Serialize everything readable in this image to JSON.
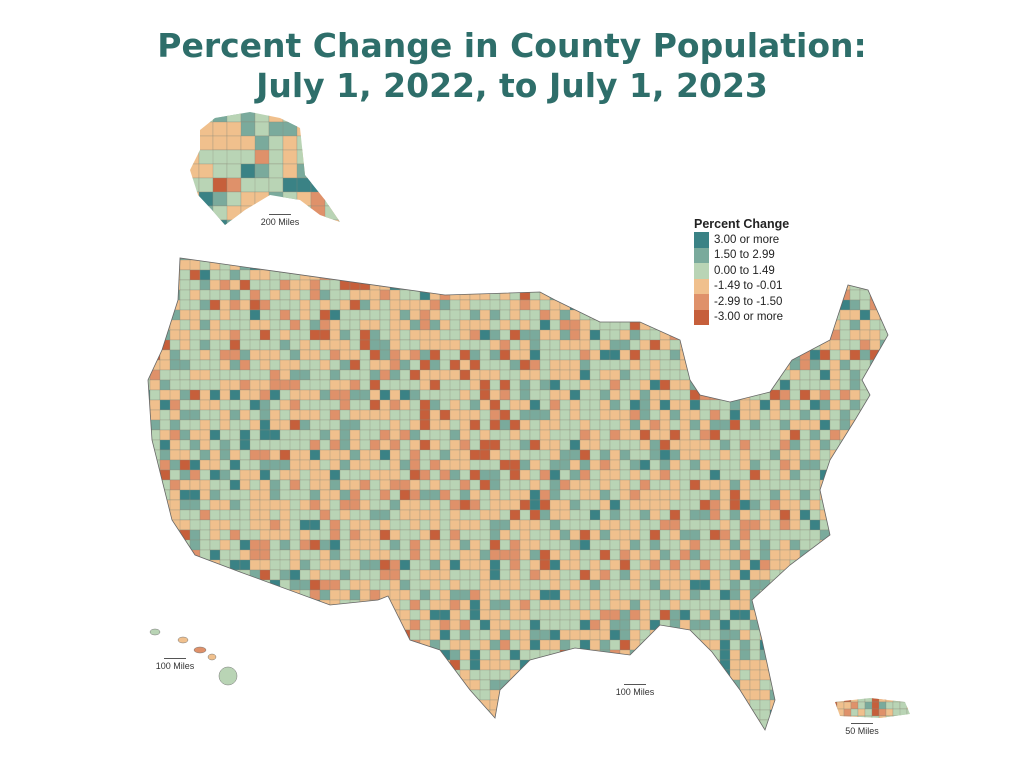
{
  "title": {
    "line1": "Percent Change in County Population:",
    "line2": "July 1, 2022, to July 1, 2023"
  },
  "legend": {
    "title": "Percent Change",
    "items": [
      {
        "label": "3.00 or more",
        "color": "#3a8285"
      },
      {
        "label": "1.50 to 2.99",
        "color": "#7aaa9c"
      },
      {
        "label": "0.00 to 1.49",
        "color": "#b9d4b5"
      },
      {
        "label": "-1.49 to -0.01",
        "color": "#f0c08d"
      },
      {
        "label": "-2.99 to -1.50",
        "color": "#df916a"
      },
      {
        "label": "-3.00 or more",
        "color": "#c65f3b"
      }
    ]
  },
  "scales": {
    "alaska": "200 Miles",
    "hawaii": "100 Miles",
    "conus": "100 Miles",
    "puerto_rico": "50 Miles"
  }
}
